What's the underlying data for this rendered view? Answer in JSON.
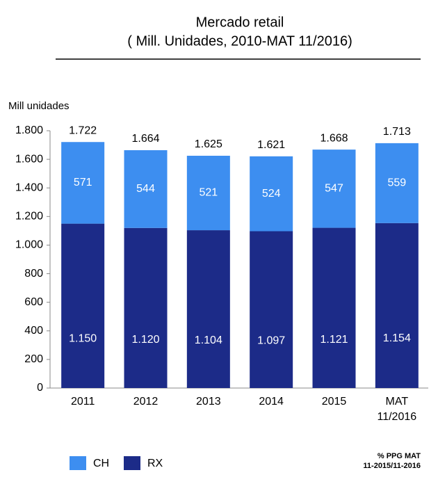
{
  "chart_data": {
    "type": "bar",
    "stacked": true,
    "title": "Mercado retail",
    "subtitle": "( Mill. Unidades, 2010-MAT 11/2016)",
    "y_label": "Mill unidades",
    "categories": [
      "2011",
      "2012",
      "2013",
      "2014",
      "2015",
      "MAT 11/2016"
    ],
    "series": [
      {
        "name": "RX",
        "color": "#1c2b88",
        "values": [
          1150,
          1120,
          1104,
          1097,
          1121,
          1154
        ],
        "value_labels": [
          "1.150",
          "1.120",
          "1.104",
          "1.097",
          "1.121",
          "1.154"
        ]
      },
      {
        "name": "CH",
        "color": "#3d8ef0",
        "values": [
          571,
          544,
          521,
          524,
          547,
          559
        ]
      }
    ],
    "totals": {
      "values": [
        1722,
        1664,
        1625,
        1621,
        1668,
        1713
      ],
      "value_labels": [
        "1.722",
        "1.664",
        "1.625",
        "1.621",
        "1.668",
        "1.713"
      ]
    },
    "ylim": [
      0,
      1800
    ],
    "yticks": [
      0,
      200,
      400,
      600,
      800,
      {
        "value": 1000,
        "label": "1.000"
      },
      {
        "value": 1200,
        "label": "1.200"
      },
      {
        "value": 1400,
        "label": "1.400"
      },
      {
        "value": 1600,
        "label": "1.600"
      },
      {
        "value": 1800,
        "label": "1.800"
      }
    ],
    "grid": false,
    "legend": "bottom-left",
    "note": [
      "% PPG MAT",
      "11-2015/11-2016"
    ]
  }
}
